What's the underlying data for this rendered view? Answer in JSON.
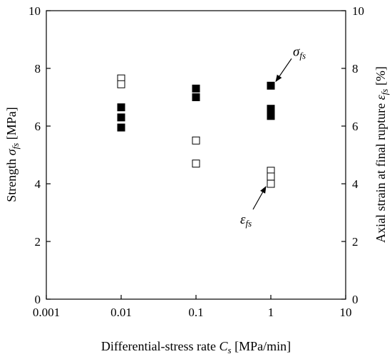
{
  "chart_data": {
    "type": "scatter",
    "x_scale": "log",
    "xlim": [
      0.001,
      10
    ],
    "ylim_left": [
      0,
      10
    ],
    "ylim_right": [
      0,
      10
    ],
    "grid": false,
    "legend": "none",
    "x_ticks": [
      "0.001",
      "0.01",
      "0.1",
      "1",
      "10"
    ],
    "y_left_ticks": [
      "0",
      "2",
      "4",
      "6",
      "8",
      "10"
    ],
    "y_right_ticks": [
      "0",
      "2",
      "4",
      "6",
      "8",
      "10"
    ],
    "xlabel": {
      "main": "Differential-stress rate ",
      "sym": "C",
      "sub": "s",
      "unit": " [MPa/min]"
    },
    "ylabel_left": {
      "main": "Strength ",
      "sym": "σ",
      "sub": "fs",
      "unit": " [MPa]"
    },
    "ylabel_right": {
      "main": "Axial strain at final rupture ",
      "sym": "ε",
      "sub": "fs",
      "unit": " [%]"
    },
    "series": [
      {
        "axis": "left",
        "marker": "filled-square",
        "color": "#000000",
        "annotation": {
          "sym": "σ",
          "sub": "fs"
        },
        "points": [
          {
            "x": 0.01,
            "y": 6.65
          },
          {
            "x": 0.01,
            "y": 6.3
          },
          {
            "x": 0.01,
            "y": 5.95
          },
          {
            "x": 0.1,
            "y": 7.3
          },
          {
            "x": 0.1,
            "y": 7.0
          },
          {
            "x": 1,
            "y": 7.4
          },
          {
            "x": 1,
            "y": 6.6
          },
          {
            "x": 1,
            "y": 6.45
          },
          {
            "x": 1,
            "y": 6.35
          }
        ]
      },
      {
        "axis": "right",
        "marker": "open-square",
        "color": "#000000",
        "annotation": {
          "sym": "ε",
          "sub": "fs"
        },
        "points": [
          {
            "x": 0.01,
            "y": 7.65
          },
          {
            "x": 0.01,
            "y": 7.45
          },
          {
            "x": 0.1,
            "y": 5.5
          },
          {
            "x": 0.1,
            "y": 4.7
          },
          {
            "x": 1,
            "y": 4.45
          },
          {
            "x": 1,
            "y": 4.25
          },
          {
            "x": 1,
            "y": 4.0
          }
        ]
      }
    ]
  }
}
